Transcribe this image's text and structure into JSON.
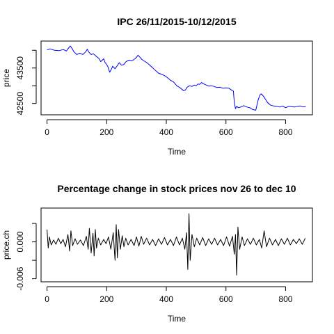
{
  "chart_data": [
    {
      "type": "line",
      "title": "IPC 26/11/2015-10/12/2015",
      "xlabel": "Time",
      "ylabel": "price",
      "xlim": [
        -20,
        890
      ],
      "ylim": [
        42180,
        44260
      ],
      "x_ticks": [
        0,
        200,
        400,
        600,
        800
      ],
      "x_tick_labels": [
        "0",
        "200",
        "400",
        "600",
        "800"
      ],
      "y_ticks": [
        42500,
        43000,
        43500,
        44000
      ],
      "y_tick_labels": [
        "42500",
        "",
        "43500",
        ""
      ],
      "grid": false,
      "series": [
        {
          "color": "#0000ff",
          "x": [
            0,
            10,
            25,
            40,
            55,
            65,
            72,
            78,
            84,
            90,
            100,
            110,
            120,
            130,
            135,
            140,
            148,
            155,
            165,
            175,
            180,
            185,
            190,
            195,
            200,
            205,
            210,
            215,
            220,
            228,
            235,
            242,
            250,
            258,
            265,
            275,
            285,
            295,
            300,
            305,
            310,
            318,
            325,
            335,
            345,
            355,
            365,
            375,
            385,
            395,
            405,
            415,
            425,
            435,
            445,
            452,
            458,
            464,
            470,
            478,
            486,
            494,
            500,
            506,
            512,
            518,
            526,
            534,
            542,
            550,
            560,
            570,
            580,
            590,
            600,
            610,
            615,
            620,
            625,
            628,
            632,
            636,
            642,
            650,
            660,
            670,
            680,
            690,
            700,
            708,
            714,
            718,
            722,
            728,
            734,
            740,
            750,
            760,
            770,
            780,
            790,
            800,
            810,
            820,
            830,
            840,
            850,
            860,
            868
          ],
          "y": [
            44010,
            44040,
            44000,
            43990,
            44020,
            43980,
            44060,
            44120,
            44050,
            43960,
            43880,
            43920,
            43880,
            43960,
            44030,
            43950,
            43880,
            43900,
            43830,
            43760,
            43680,
            43720,
            43760,
            43650,
            43600,
            43520,
            43380,
            43450,
            43550,
            43480,
            43560,
            43650,
            43580,
            43600,
            43680,
            43720,
            43700,
            43760,
            43800,
            43860,
            43820,
            43740,
            43700,
            43650,
            43580,
            43500,
            43420,
            43350,
            43320,
            43280,
            43220,
            43150,
            43100,
            43000,
            42950,
            42900,
            42860,
            42880,
            42960,
            43000,
            42980,
            43020,
            43000,
            43050,
            43040,
            43090,
            43050,
            43020,
            42990,
            43000,
            42980,
            42950,
            42960,
            42930,
            42940,
            42930,
            42900,
            42870,
            42850,
            42540,
            42350,
            42420,
            42380,
            42400,
            42440,
            42400,
            42380,
            42330,
            42310,
            42600,
            42740,
            42770,
            42740,
            42680,
            42600,
            42520,
            42450,
            42430,
            42420,
            42400,
            42430,
            42380,
            42420,
            42410,
            42400,
            42420,
            42430,
            42400,
            42420
          ]
        }
      ]
    },
    {
      "type": "line",
      "title": "Percentage change in stock prices nov 26 to dec 10",
      "xlabel": "Time",
      "ylabel": "price.ch",
      "xlim": [
        -20,
        890
      ],
      "ylim": [
        -0.0065,
        0.0055
      ],
      "x_ticks": [
        0,
        200,
        400,
        600,
        800
      ],
      "x_tick_labels": [
        "0",
        "200",
        "400",
        "600",
        "800"
      ],
      "y_ticks": [
        -0.006,
        -0.003,
        0.0,
        0.003
      ],
      "y_tick_labels": [
        "-0.006",
        "",
        "0.000",
        ""
      ],
      "grid": false,
      "series": [
        {
          "color": "#000000",
          "x": [
            0,
            4,
            8,
            14,
            22,
            30,
            38,
            46,
            54,
            62,
            70,
            76,
            80,
            86,
            94,
            102,
            112,
            122,
            132,
            138,
            142,
            148,
            154,
            158,
            162,
            166,
            172,
            180,
            190,
            198,
            206,
            214,
            222,
            228,
            232,
            236,
            240,
            246,
            252,
            258,
            264,
            272,
            282,
            292,
            300,
            308,
            316,
            324,
            334,
            344,
            354,
            364,
            374,
            384,
            394,
            404,
            414,
            424,
            434,
            444,
            454,
            462,
            468,
            472,
            476,
            480,
            486,
            494,
            502,
            512,
            522,
            532,
            542,
            552,
            562,
            572,
            582,
            592,
            602,
            612,
            622,
            628,
            632,
            636,
            640,
            646,
            654,
            662,
            672,
            682,
            692,
            702,
            712,
            720,
            728,
            736,
            746,
            756,
            766,
            776,
            786,
            796,
            806,
            816,
            826,
            836,
            846,
            856,
            866
          ],
          "y": [
            0.002,
            -0.001,
            0.0008,
            -0.0005,
            0.0003,
            -0.0004,
            0.0006,
            -0.0003,
            0.0004,
            -0.0008,
            0.0012,
            -0.0015,
            0.0018,
            -0.0006,
            0.0005,
            -0.0004,
            0.0003,
            -0.0006,
            0.0009,
            -0.0012,
            0.0022,
            -0.0018,
            0.0014,
            -0.0023,
            0.002,
            -0.001,
            0.0006,
            -0.0005,
            0.0004,
            -0.0003,
            0.0008,
            -0.0012,
            0.0015,
            -0.003,
            0.0028,
            -0.0026,
            0.002,
            -0.0012,
            0.001,
            -0.0008,
            0.0006,
            -0.0005,
            0.0004,
            -0.0006,
            0.0008,
            -0.0007,
            0.0009,
            -0.0004,
            0.0006,
            -0.0005,
            0.0004,
            -0.0006,
            0.0005,
            -0.0004,
            0.0007,
            -0.0005,
            0.0004,
            -0.0006,
            0.0008,
            -0.0005,
            0.0006,
            -0.0012,
            0.0015,
            -0.0045,
            0.0046,
            -0.003,
            0.0012,
            -0.0008,
            0.0006,
            -0.0005,
            0.0007,
            -0.0006,
            0.0005,
            -0.0004,
            0.0006,
            -0.0005,
            0.0004,
            -0.0006,
            0.0008,
            -0.0007,
            0.0009,
            -0.002,
            0.0012,
            -0.0054,
            0.0024,
            -0.0012,
            0.0008,
            -0.0006,
            0.0005,
            -0.0004,
            0.0006,
            -0.0005,
            0.0004,
            -0.001,
            0.0018,
            -0.0008,
            0.0006,
            -0.0005,
            0.0004,
            -0.0006,
            0.0005,
            -0.0004,
            0.0006,
            -0.0005,
            0.0004,
            -0.0003,
            0.0005,
            -0.0004,
            0.0006
          ]
        }
      ]
    }
  ]
}
